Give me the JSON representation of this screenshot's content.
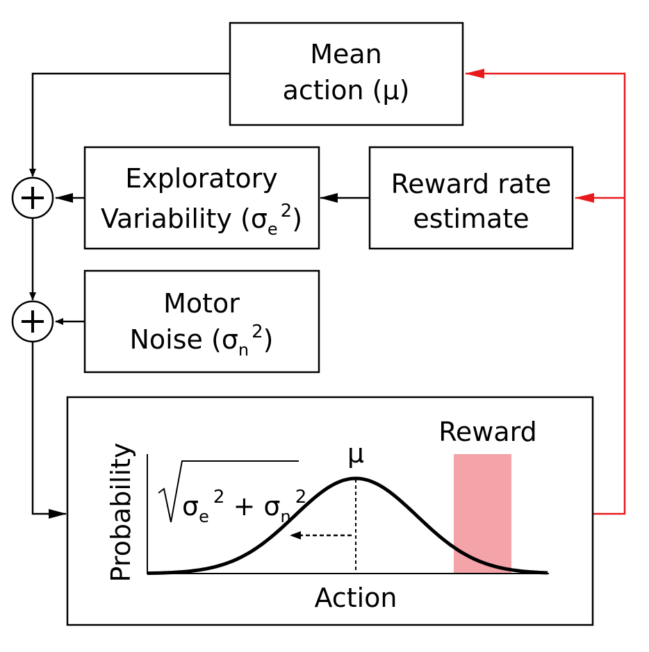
{
  "boxes": {
    "mean_action": {
      "line1": "Mean",
      "line2": "action (μ)"
    },
    "exploratory": {
      "line1": "Exploratory",
      "line2_main": "Variability (σ",
      "line2_sub": "e",
      "line2_sup": "2",
      "line2_end": ")"
    },
    "reward_rate": {
      "line1": "Reward rate",
      "line2": "estimate"
    },
    "motor_noise": {
      "line1": "Motor",
      "line2_main": "Noise (σ",
      "line2_sub": "n",
      "line2_sup": "2",
      "line2_end": ")"
    }
  },
  "plot": {
    "ylabel": "Probability",
    "xlabel": "Action",
    "mu_label": "μ",
    "reward_label": "Reward",
    "formula": {
      "s1": "σ",
      "sub1": "e",
      "sup1": "2",
      "plus": " + σ",
      "sub2": "n",
      "sup2": "2"
    }
  },
  "colors": {
    "feedback": "#e8191c",
    "reward_region": "#f4a3a8",
    "ink": "#000000"
  }
}
